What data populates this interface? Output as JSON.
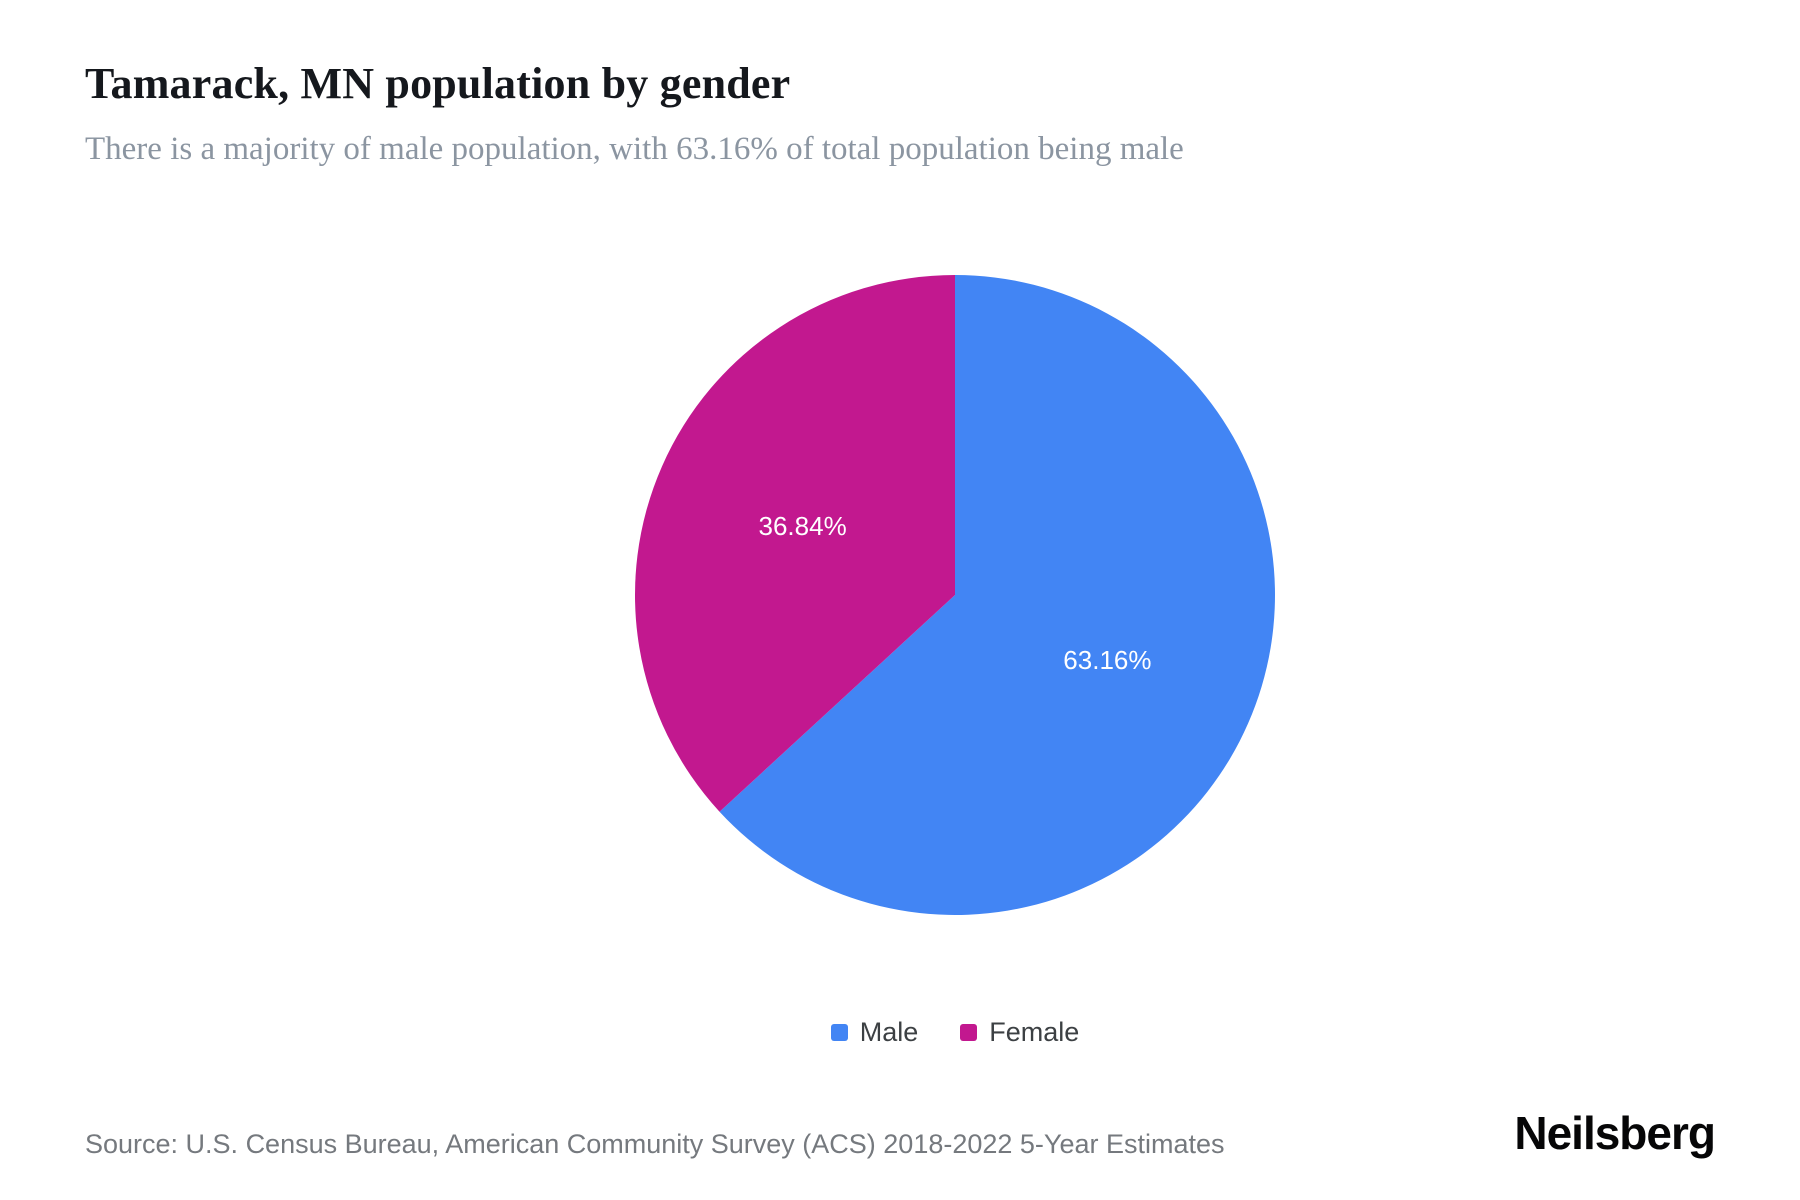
{
  "header": {
    "title": "Tamarack, MN population by gender",
    "subtitle": "There is a majority of male population, with 63.16% of total population being male"
  },
  "chart_data": {
    "type": "pie",
    "title": "Tamarack, MN population by gender",
    "start_angle_deg": 0,
    "direction": "clockwise",
    "legend_position": "bottom",
    "value_label_color": "#ffffff",
    "slices": [
      {
        "label": "Male",
        "value": 63.16,
        "display": "63.16%",
        "color": "#4285f4"
      },
      {
        "label": "Female",
        "value": 36.84,
        "display": "36.84%",
        "color": "#c2188f"
      }
    ]
  },
  "footer": {
    "source": "Source: U.S. Census Bureau, American Community Survey (ACS) 2018-2022 5-Year Estimates",
    "brand": "Neilsberg"
  }
}
